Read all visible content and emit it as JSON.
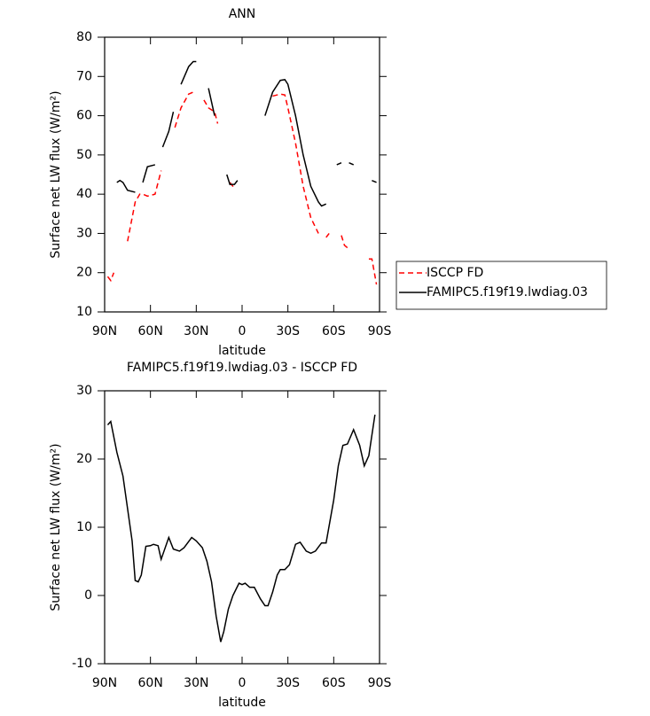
{
  "chart_data": [
    {
      "type": "line",
      "title": "ANN",
      "x_label": "latitude",
      "y_label": "Surface net LW flux (W/m²)",
      "x": [
        88,
        86,
        84,
        82,
        80,
        78,
        75,
        70,
        67,
        65,
        62,
        57,
        53,
        52,
        48,
        45,
        44,
        40,
        35,
        32,
        30,
        28,
        27,
        25,
        22,
        18,
        16,
        14,
        12,
        10,
        8,
        5,
        3,
        2,
        0,
        -2,
        -5,
        -8,
        -10,
        -14,
        -15,
        -20,
        -25,
        -28,
        -30,
        -35,
        -40,
        -45,
        -50,
        -52,
        -55,
        -57,
        -58,
        -60,
        -62,
        -65,
        -67,
        -70,
        -73,
        -75,
        -76,
        -78,
        -79,
        -80,
        -82,
        -83,
        -85,
        -88
      ],
      "series": [
        {
          "name": "ISCCP FD",
          "color": "#ff0000",
          "line_style": "dashed",
          "values": [
            19,
            18,
            20,
            null,
            24,
            null,
            28,
            38,
            40,
            40,
            39.5,
            40,
            46,
            null,
            50,
            null,
            57,
            62,
            65.5,
            66,
            null,
            65,
            null,
            64,
            62,
            61,
            58,
            null,
            50,
            null,
            43,
            41.5,
            null,
            42,
            null,
            44,
            null,
            52,
            null,
            60,
            null,
            65,
            65.5,
            65.3,
            62,
            53,
            42,
            34,
            30,
            null,
            29,
            30,
            null,
            29,
            null,
            29.5,
            27,
            26,
            null,
            24,
            null,
            21,
            null,
            22,
            null,
            23.5,
            23.5,
            17
          ]
        },
        {
          "name": "FAMIPC5.f19f19.lwdiag.03",
          "color": "#000000",
          "line_style": "solid",
          "values": [
            44,
            null,
            null,
            43,
            43.5,
            43,
            41,
            40.5,
            null,
            43,
            47,
            47.5,
            null,
            52,
            56,
            61,
            null,
            68,
            72.5,
            73.8,
            73.8,
            null,
            72.5,
            null,
            67,
            60,
            null,
            52,
            null,
            45,
            42.5,
            42.5,
            43.5,
            null,
            44,
            null,
            47,
            null,
            52,
            null,
            60,
            66,
            69,
            69.2,
            68,
            60,
            50,
            42,
            38,
            37,
            37.5,
            null,
            40,
            null,
            47.5,
            48,
            null,
            48,
            47.5,
            null,
            44,
            null,
            42.5,
            null,
            44,
            null,
            43.5,
            43
          ]
        }
      ],
      "xlim": [
        90,
        -90
      ],
      "xticks": [
        {
          "value": 90,
          "label": "90N"
        },
        {
          "value": 60,
          "label": "60N"
        },
        {
          "value": 30,
          "label": "30N"
        },
        0,
        {
          "value": -30,
          "label": "30S"
        },
        {
          "value": -60,
          "label": "60S"
        },
        {
          "value": -90,
          "label": "90S"
        }
      ],
      "ylim": [
        10,
        80
      ],
      "yticks": [
        10,
        20,
        30,
        40,
        50,
        60,
        70,
        80
      ],
      "legend": "right"
    },
    {
      "type": "line",
      "title": "FAMIPC5.f19f19.lwdiag.03 - ISCCP FD",
      "x_label": "latitude",
      "y_label": "Surface net LW flux (W/m²)",
      "x": [
        88,
        86,
        82,
        78,
        72,
        70,
        68,
        66,
        63,
        60,
        58,
        55,
        53,
        48,
        45,
        41,
        38,
        33,
        30,
        26,
        23,
        20,
        17,
        14,
        12,
        9,
        6,
        2,
        0,
        -2,
        -5,
        -8,
        -12,
        -15,
        -17,
        -20,
        -23,
        -25,
        -28,
        -31,
        -35,
        -38,
        -42,
        -45,
        -48,
        -52,
        -55,
        -60,
        -63,
        -66,
        -69,
        -73,
        -77,
        -80,
        -83,
        -87
      ],
      "values": [
        25,
        25.5,
        21,
        17.5,
        8,
        2.2,
        2,
        3,
        7.2,
        7.3,
        7.5,
        7.3,
        5.3,
        8.5,
        6.8,
        6.5,
        7,
        8.5,
        8,
        7,
        5,
        2,
        -3,
        -6.8,
        -5.3,
        -2,
        0,
        1.8,
        1.6,
        1.8,
        1.2,
        1.2,
        -0.5,
        -1.5,
        -1.5,
        0.5,
        3,
        3.8,
        3.8,
        4.5,
        7.5,
        7.8,
        6.5,
        6.2,
        6.5,
        7.7,
        7.7,
        14,
        19,
        22,
        22.2,
        24.3,
        22,
        19,
        20.5,
        26.5
      ],
      "color": "#000000",
      "xlim": [
        90,
        -90
      ],
      "xticks": [
        {
          "value": 90,
          "label": "90N"
        },
        {
          "value": 60,
          "label": "60N"
        },
        {
          "value": 30,
          "label": "30N"
        },
        0,
        {
          "value": -30,
          "label": "30S"
        },
        {
          "value": -60,
          "label": "60S"
        },
        {
          "value": -90,
          "label": "90S"
        }
      ],
      "ylim": [
        -10,
        30
      ],
      "yticks": [
        -10,
        0,
        10,
        20,
        30
      ]
    }
  ]
}
